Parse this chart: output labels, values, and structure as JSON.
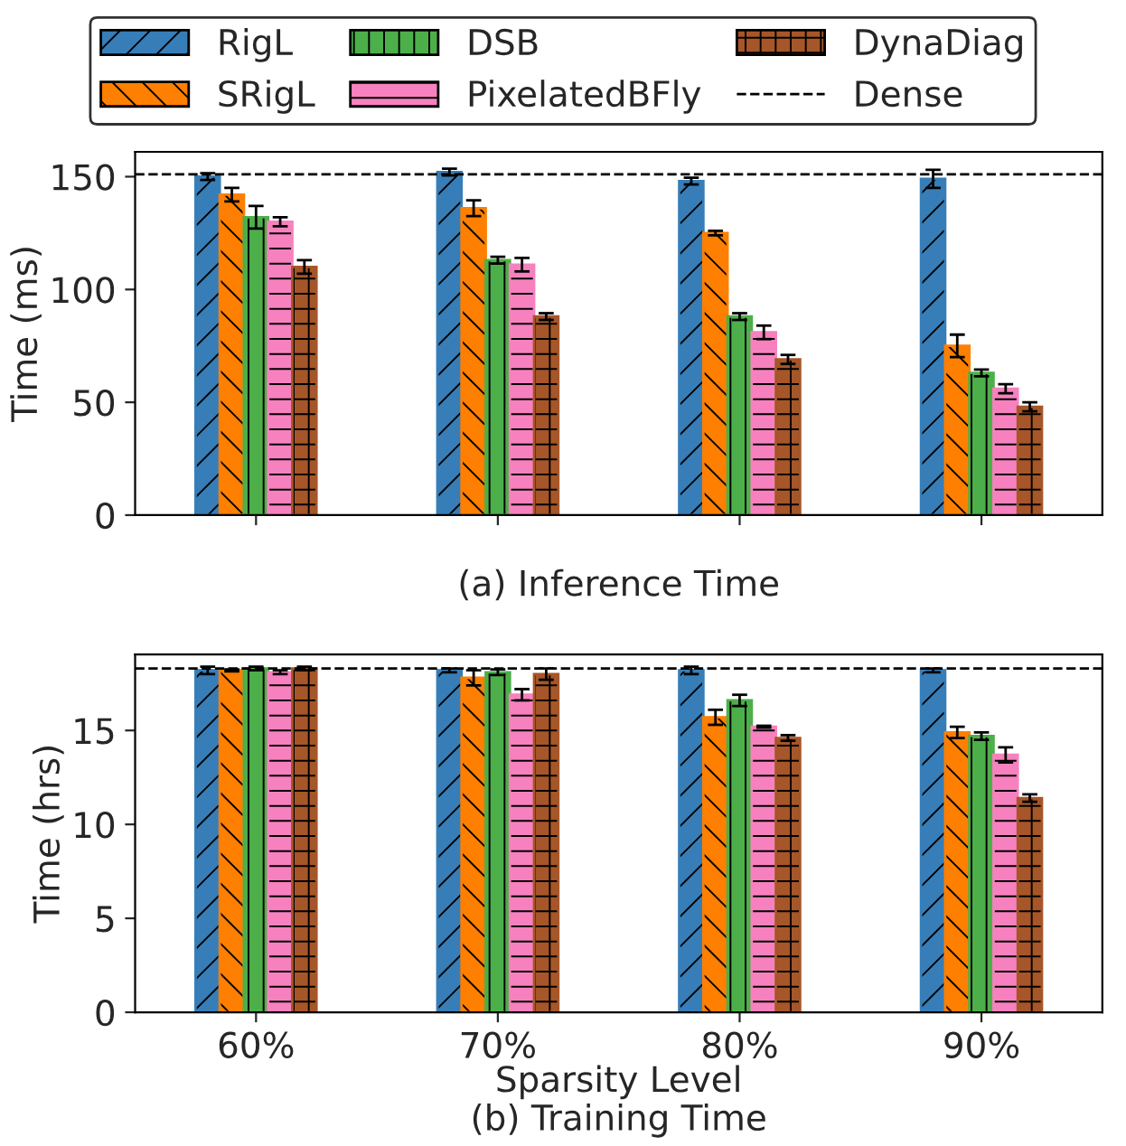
{
  "chart_data": [
    {
      "type": "bar",
      "categories": [
        null,
        null,
        null,
        null
      ],
      "xlabel": "(a) Inference Time",
      "ylabel": "Time (ms)",
      "ylim": [
        0,
        161
      ],
      "yticks": [
        0,
        50,
        100,
        150
      ],
      "tick_labels": "y",
      "legend": "top",
      "grid": false,
      "series": [
        {
          "name": "RigL",
          "color": "#377eb8",
          "values": [
            150,
            152,
            148,
            149
          ],
          "errors": [
            1.5,
            1.5,
            1.5,
            4
          ]
        },
        {
          "name": "SRigL",
          "color": "#ff7f00",
          "values": [
            142,
            136,
            125,
            75
          ],
          "errors": [
            3,
            3.5,
            1,
            5
          ]
        },
        {
          "name": "DSB",
          "color": "#4daf4a",
          "values": [
            132,
            113,
            88,
            63
          ],
          "errors": [
            5,
            1.5,
            1.5,
            1.5
          ]
        },
        {
          "name": "PixelatedBFly",
          "color": "#f781bf",
          "values": [
            130,
            111,
            81,
            56
          ],
          "errors": [
            2,
            3,
            3,
            2
          ]
        },
        {
          "name": "DynaDiag",
          "color": "#a65628",
          "values": [
            110,
            88,
            69,
            48
          ],
          "errors": [
            3,
            1.5,
            2,
            2
          ]
        }
      ],
      "ref_lines": [
        {
          "axis": "y",
          "value": 151,
          "label": "Dense",
          "color": "#000000",
          "line_style": "dashed"
        }
      ]
    },
    {
      "type": "bar",
      "categories": [
        "60%",
        "70%",
        "80%",
        "90%"
      ],
      "xlabel": "Sparsity Level",
      "ylabel": "Time (hrs)",
      "ylim": [
        0,
        19.05
      ],
      "yticks": [
        0,
        5,
        10,
        15
      ],
      "grid": false,
      "annotations": [
        "(b) Training Time"
      ],
      "series": [
        {
          "color": "#377eb8",
          "values": [
            18.2,
            18.2,
            18.2,
            18.2
          ],
          "errors": [
            0.2,
            0.1,
            0.2,
            0.1
          ]
        },
        {
          "color": "#ff7f00",
          "values": [
            18.2,
            17.8,
            15.7,
            14.9
          ],
          "errors": [
            0.05,
            0.4,
            0.4,
            0.3
          ]
        },
        {
          "color": "#4daf4a",
          "values": [
            18.3,
            18.1,
            16.6,
            14.7
          ],
          "errors": [
            0.1,
            0.15,
            0.3,
            0.2
          ]
        },
        {
          "color": "#f781bf",
          "values": [
            18.1,
            16.9,
            15.2,
            13.7
          ],
          "errors": [
            0.1,
            0.3,
            0.05,
            0.4
          ]
        },
        {
          "color": "#a65628",
          "values": [
            18.3,
            18.0,
            14.6,
            11.4
          ],
          "errors": [
            0.1,
            0.3,
            0.15,
            0.2
          ]
        }
      ],
      "ref_lines": [
        {
          "axis": "y",
          "value": 18.3,
          "color": "#000000",
          "line_style": "dashed"
        }
      ]
    }
  ]
}
